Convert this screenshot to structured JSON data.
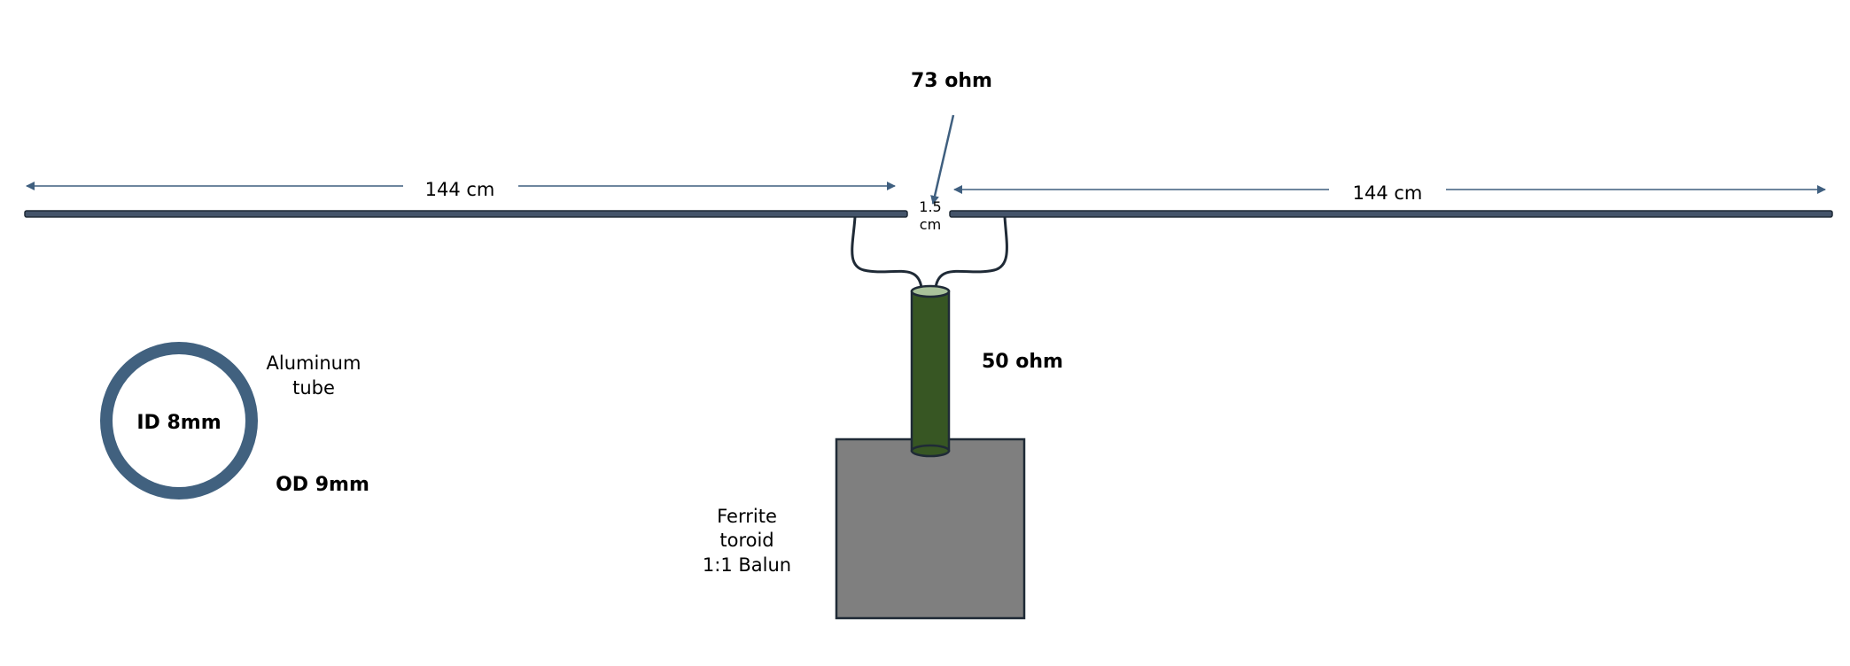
{
  "labels": {
    "feed_impedance": "73 ohm",
    "left_length": "144 cm",
    "right_length": "144 cm",
    "gap_value": "1.5",
    "gap_unit": "cm",
    "coax_impedance": "50 ohm",
    "tube_material_line1": "Aluminum",
    "tube_material_line2": "tube",
    "tube_inner": "ID 8mm",
    "tube_outer": "OD 9mm",
    "balun_line1": "Ferrite",
    "balun_line2": "toroid",
    "balun_line3": "1:1 Balun"
  },
  "colors": {
    "element": "#44546a",
    "arrow": "#3f5f7f",
    "tube_ring": "#41617f",
    "coax_body": "#375623",
    "coax_top": "#a9c29a",
    "balun_box": "#7f7f7f",
    "outline": "#1f2a36"
  }
}
